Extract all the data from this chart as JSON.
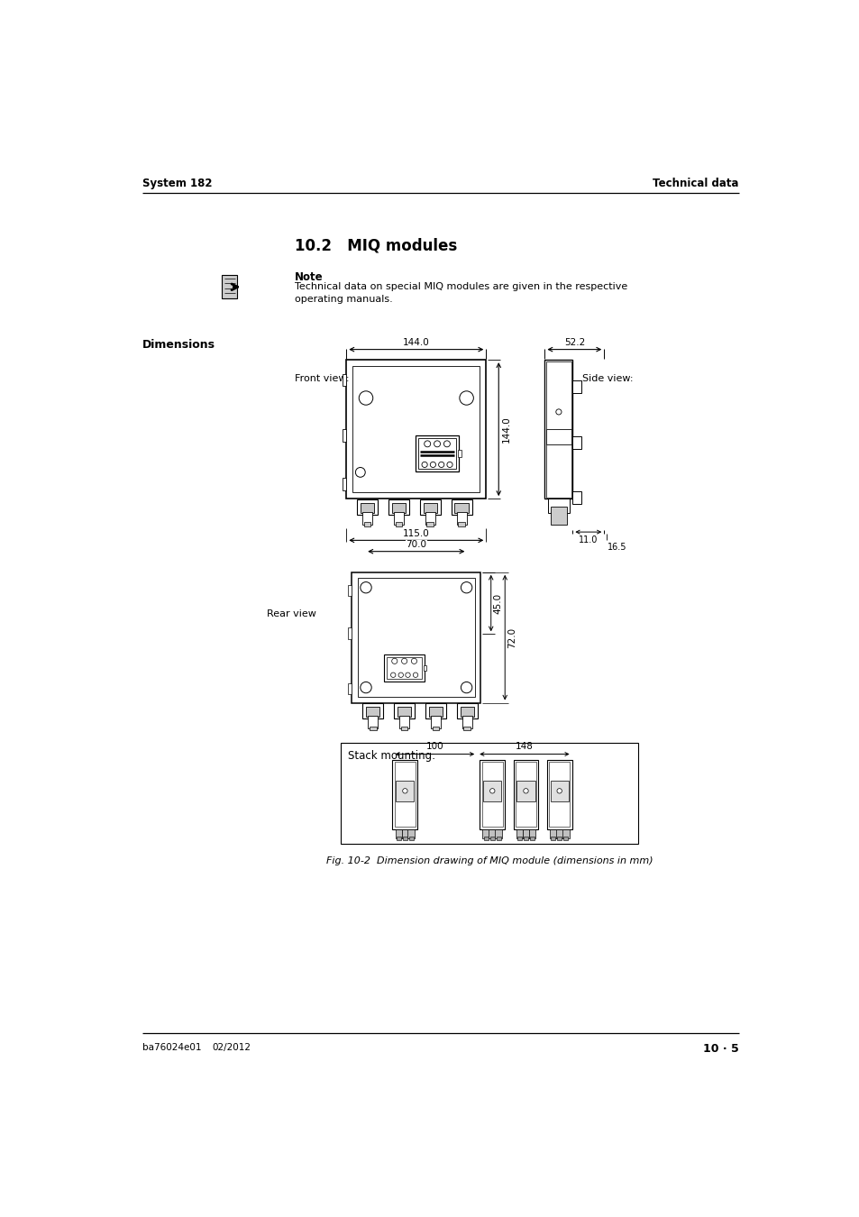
{
  "page_title_left": "System 182",
  "page_title_right": "Technical data",
  "section_title": "10.2   MIQ modules",
  "note_title": "Note",
  "note_text": "Technical data on special MIQ modules are given in the respective\noperating manuals.",
  "dimensions_label": "Dimensions",
  "front_view_label": "Front view:",
  "side_view_label": "Side view:",
  "rear_view_label": "Rear view",
  "stack_label": "Stack mounting:",
  "caption": "Fig. 10-2  Dimension drawing of MIQ module (dimensions in mm)",
  "footer_left": "ba76024e01",
  "footer_date": "02/2012",
  "footer_right": "10 · 5",
  "dim_144_w": "144.0",
  "dim_144_h": "144.0",
  "dim_115": "115.0",
  "dim_70": "70.0",
  "dim_52": "52.2",
  "dim_11": "11.0",
  "dim_16": "16.5",
  "dim_45": "45.0",
  "dim_72": "72.0",
  "dim_100": "100",
  "dim_148": "148",
  "bg_color": "#ffffff",
  "line_color": "#000000",
  "text_color": "#000000"
}
